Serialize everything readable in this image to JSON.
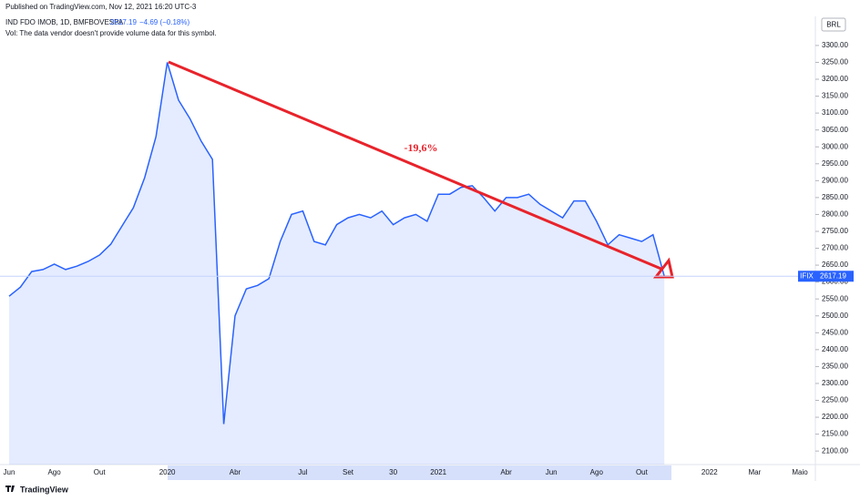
{
  "chart_data": {
    "type": "area",
    "published": "Published on TradingView.com, Nov 12, 2021 16:20 UTC-3",
    "symbol": "IND FDO IMOB, 1D, BMFBOVESPA",
    "last_price": 2617.19,
    "change_label": "−4.69 (−0.18%)",
    "volume_note": "Vol: The data vendor doesn't provide volume data for this symbol.",
    "currency": "BRL",
    "ticker": "IFIX",
    "annotation": "-19,6%",
    "brand": "TradingView",
    "color": "#2962ff",
    "categories": [
      "Jun",
      null,
      null,
      null,
      "Ago",
      null,
      null,
      null,
      "Out",
      null,
      null,
      null,
      null,
      null,
      "2020",
      null,
      null,
      null,
      null,
      null,
      "Abr",
      null,
      null,
      null,
      null,
      null,
      "Jul",
      null,
      null,
      null,
      "Set",
      null,
      null,
      null,
      "30",
      null,
      null,
      null,
      "2021",
      null,
      null,
      null,
      null,
      null,
      "Abr",
      null,
      null,
      null,
      "Jun",
      null,
      null,
      null,
      "Ago",
      null,
      null,
      null,
      "Out",
      null,
      null,
      null,
      null,
      null,
      "2022",
      null,
      null,
      null,
      "Mar",
      null,
      null,
      null,
      "Maio",
      null
    ],
    "values": [
      2558,
      2585,
      2631,
      2637,
      2653,
      2637,
      2647,
      2661,
      2680,
      2712,
      2766,
      2820,
      2909,
      3030,
      3250,
      3138,
      3084,
      3017,
      2963,
      2180,
      2500,
      2580,
      2590,
      2610,
      2720,
      2800,
      2810,
      2720,
      2710,
      2770,
      2790,
      2800,
      2790,
      2810,
      2770,
      2790,
      2800,
      2780,
      2860,
      2860,
      2880,
      2885,
      2850,
      2810,
      2850,
      2850,
      2860,
      2830,
      2810,
      2790,
      2840,
      2840,
      2780,
      2710,
      2740,
      2730,
      2720,
      2740,
      2617.19,
      null,
      null,
      null,
      null,
      null,
      null,
      null,
      null,
      null,
      null,
      null,
      null,
      null
    ],
    "ylim": [
      2060,
      3386
    ],
    "yticks": [
      {
        "value": 2100,
        "label": "2100.00"
      },
      {
        "value": 2150,
        "label": "2150.00"
      },
      {
        "value": 2200,
        "label": "2200.00"
      },
      {
        "value": 2250,
        "label": "2250.00"
      },
      {
        "value": 2300,
        "label": "2300.00"
      },
      {
        "value": 2350,
        "label": "2350.00"
      },
      {
        "value": 2400,
        "label": "2400.00"
      },
      {
        "value": 2450,
        "label": "2450.00"
      },
      {
        "value": 2500,
        "label": "2500.00"
      },
      {
        "value": 2550,
        "label": "2550.00"
      },
      {
        "value": 2600,
        "label": "2600.00"
      },
      {
        "value": 2650,
        "label": "2650.00"
      },
      {
        "value": 2700,
        "label": "2700.00"
      },
      {
        "value": 2750,
        "label": "2750.00"
      },
      {
        "value": 2800,
        "label": "2800.00"
      },
      {
        "value": 2850,
        "label": "2850.00"
      },
      {
        "value": 2900,
        "label": "2900.00"
      },
      {
        "value": 2950,
        "label": "2950.00"
      },
      {
        "value": 3000,
        "label": "3000.00"
      },
      {
        "value": 3050,
        "label": "3050.00"
      },
      {
        "value": 3100,
        "label": "3100.00"
      },
      {
        "value": 3150,
        "label": "3150.00"
      },
      {
        "value": 3200,
        "label": "3200.00"
      },
      {
        "value": 3250,
        "label": "3250.00"
      },
      {
        "value": 3300,
        "label": "3300.00"
      }
    ]
  }
}
